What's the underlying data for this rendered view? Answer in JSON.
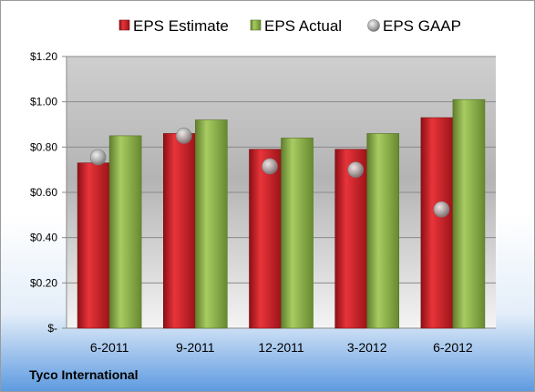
{
  "company": "Tyco International",
  "chart_data": {
    "type": "bar",
    "categories": [
      "6-2011",
      "9-2011",
      "12-2011",
      "3-2012",
      "6-2012"
    ],
    "series": [
      {
        "name": "EPS Estimate",
        "kind": "bar",
        "color": "#cc1f26",
        "values": [
          0.73,
          0.86,
          0.79,
          0.79,
          0.93
        ]
      },
      {
        "name": "EPS Actual",
        "kind": "bar",
        "color": "#8fb44b",
        "values": [
          0.85,
          0.92,
          0.84,
          0.86,
          1.01
        ]
      },
      {
        "name": "EPS GAAP",
        "kind": "scatter",
        "color": "#a8a8a8",
        "values": [
          0.755,
          0.85,
          0.715,
          0.7,
          0.525
        ]
      }
    ],
    "ylim": [
      0,
      1.2
    ],
    "yticks": [
      0,
      0.2,
      0.4,
      0.6,
      0.8,
      1.0,
      1.2
    ],
    "ytick_labels": [
      "$-",
      "$0.20",
      "$0.40",
      "$0.60",
      "$0.80",
      "$1.00",
      "$1.20"
    ],
    "grid": true,
    "legend_position": "top"
  }
}
